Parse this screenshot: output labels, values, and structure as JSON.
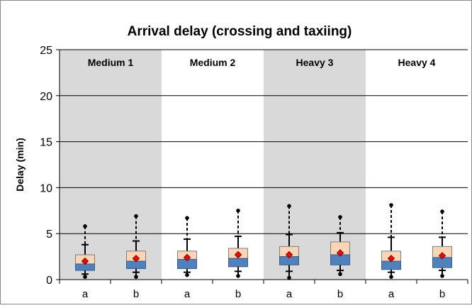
{
  "chart_data": {
    "type": "box",
    "title": "Arrival delay (crossing and taxiing)",
    "ylabel": "Delay (min)",
    "xlabel": "",
    "ylim": [
      0,
      25
    ],
    "yticks": [
      0,
      5,
      10,
      15,
      20,
      25
    ],
    "grid": true,
    "panels": [
      {
        "label": "Medium 1",
        "shaded": true
      },
      {
        "label": "Medium 2",
        "shaded": false
      },
      {
        "label": "Heavy 3",
        "shaded": true
      },
      {
        "label": "Heavy 4",
        "shaded": false
      }
    ],
    "categories": [
      "a",
      "b",
      "a",
      "b",
      "a",
      "b",
      "a",
      "b"
    ],
    "boxes": [
      {
        "panel": "Medium 1",
        "category": "a",
        "min": 0.3,
        "whisker_low": 0.6,
        "q1": 1.0,
        "median": 1.7,
        "q3": 2.7,
        "whisker_high": 3.8,
        "max": 5.8,
        "mean": 2.0
      },
      {
        "panel": "Medium 1",
        "category": "b",
        "min": 0.3,
        "whisker_low": 0.8,
        "q1": 1.2,
        "median": 2.0,
        "q3": 3.1,
        "whisker_high": 4.2,
        "max": 6.9,
        "mean": 2.3
      },
      {
        "panel": "Medium 2",
        "category": "a",
        "min": 0.5,
        "whisker_low": 0.8,
        "q1": 1.2,
        "median": 2.2,
        "q3": 3.1,
        "whisker_high": 4.4,
        "max": 6.7,
        "mean": 2.4
      },
      {
        "panel": "Medium 2",
        "category": "b",
        "min": 0.4,
        "whisker_low": 0.9,
        "q1": 1.4,
        "median": 2.3,
        "q3": 3.4,
        "whisker_high": 4.7,
        "max": 7.5,
        "mean": 2.7
      },
      {
        "panel": "Heavy 3",
        "category": "a",
        "min": 0.2,
        "whisker_low": 0.9,
        "q1": 1.6,
        "median": 2.5,
        "q3": 3.6,
        "whisker_high": 4.9,
        "max": 8.0,
        "mean": 2.7
      },
      {
        "panel": "Heavy 3",
        "category": "b",
        "min": 0.6,
        "whisker_low": 1.0,
        "q1": 1.6,
        "median": 2.7,
        "q3": 4.1,
        "whisker_high": 5.1,
        "max": 6.8,
        "mean": 2.9
      },
      {
        "panel": "Heavy 4",
        "category": "a",
        "min": 0.3,
        "whisker_low": 0.8,
        "q1": 1.1,
        "median": 2.0,
        "q3": 3.1,
        "whisker_high": 4.6,
        "max": 8.1,
        "mean": 2.3
      },
      {
        "panel": "Heavy 4",
        "category": "b",
        "min": 0.4,
        "whisker_low": 1.0,
        "q1": 1.3,
        "median": 2.4,
        "q3": 3.6,
        "whisker_high": 4.6,
        "max": 7.4,
        "mean": 2.6
      }
    ],
    "colors": {
      "panel_shade": "#d9d9d9",
      "box_lower": "#4f81bd",
      "box_upper": "#fcd5b4",
      "mean_marker": "#ff0000",
      "grid": "#000000",
      "whisker": "#000000"
    }
  }
}
